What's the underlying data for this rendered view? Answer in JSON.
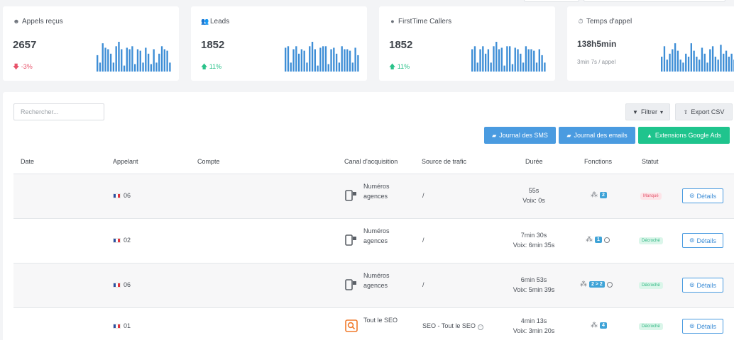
{
  "stats": [
    {
      "title": "Appels reçus",
      "icon": "headset-icon",
      "value": "2657",
      "trend": "-3%",
      "trend_dir": "down",
      "bars": [
        0.55,
        0.3,
        0.95,
        0.8,
        0.75,
        0.6,
        0.3,
        0.85,
        1.0,
        0.75,
        0.2,
        0.8,
        0.75,
        0.85,
        0.25,
        0.75,
        0.7,
        0.3,
        0.8,
        0.6,
        0.25,
        0.75,
        0.3,
        0.6,
        0.85,
        0.75,
        0.7,
        0.3
      ]
    },
    {
      "title": "Leads",
      "icon": "users-icon",
      "value": "1852",
      "trend": "11%",
      "trend_dir": "up",
      "bars": [
        0.8,
        0.85,
        0.3,
        0.75,
        0.85,
        0.6,
        0.75,
        0.7,
        0.3,
        0.85,
        1.0,
        0.75,
        0.2,
        0.8,
        0.85,
        0.85,
        0.25,
        0.75,
        0.8,
        0.6,
        0.3,
        0.85,
        0.75,
        0.75,
        0.7,
        0.3,
        0.8,
        0.55
      ]
    },
    {
      "title": "FirstTime Callers",
      "icon": "user-shield-icon",
      "value": "1852",
      "trend": "11%",
      "trend_dir": "up",
      "bars": [
        0.75,
        0.85,
        0.3,
        0.75,
        0.85,
        0.6,
        0.75,
        0.3,
        0.85,
        1.0,
        0.75,
        0.8,
        0.2,
        0.85,
        0.85,
        0.25,
        0.8,
        0.75,
        0.6,
        0.3,
        0.85,
        0.75,
        0.75,
        0.7,
        0.3,
        0.75,
        0.55,
        0.3
      ]
    },
    {
      "title": "Temps d'appel",
      "icon": "stopwatch-icon",
      "value": "138h5min",
      "sub": "3min 7s / appel",
      "bars": [
        0.5,
        0.85,
        0.4,
        0.6,
        0.75,
        0.95,
        0.7,
        0.4,
        0.3,
        0.6,
        0.5,
        0.95,
        0.7,
        0.5,
        0.4,
        0.8,
        0.6,
        0.3,
        0.75,
        0.85,
        0.5,
        0.4,
        0.9,
        0.6,
        0.7,
        0.5,
        0.6,
        0.4
      ]
    }
  ],
  "toolbar": {
    "search_placeholder": "Rechercher...",
    "filter_label": "Filtrer",
    "export_label": "Export CSV",
    "sms_label": "Journal des SMS",
    "emails_label": "Journal des emails",
    "ads_label": "Extensions Google Ads"
  },
  "table": {
    "headers": {
      "date": "Date",
      "caller": "Appelant",
      "account": "Compte",
      "channel": "Canal d'acquisition",
      "source": "Source de trafic",
      "duration": "Durée",
      "functions": "Fonctions",
      "status": "Statut"
    },
    "rows": [
      {
        "caller": "06",
        "channel_l1": "Numéros",
        "channel_l2": "agences",
        "channel_type": "phone",
        "source": "/",
        "dur1": "55s",
        "dur2": "Voix: 0s",
        "fn_count": "2",
        "fn_user": false,
        "status": "Manqué",
        "status_type": "miss",
        "details": "Détails"
      },
      {
        "caller": "02",
        "channel_l1": "Numéros",
        "channel_l2": "agences",
        "channel_type": "phone",
        "source": "/",
        "dur1": "7min 30s",
        "dur2": "Voix: 6min 35s",
        "fn_count": "1",
        "fn_user": true,
        "status": "Décroché",
        "status_type": "ok",
        "details": "Détails"
      },
      {
        "caller": "06",
        "channel_l1": "Numéros",
        "channel_l2": "agences",
        "channel_type": "phone",
        "source": "/",
        "dur1": "6min 53s",
        "dur2": "Voix: 5min 39s",
        "fn_count": "2 > 2",
        "fn_user": true,
        "status": "Décroché",
        "status_type": "ok",
        "details": "Détails"
      },
      {
        "caller": "01",
        "channel_l1": "Tout le SEO",
        "channel_l2": "",
        "channel_type": "seo",
        "source": "SEO - Tout le SEO",
        "dur1": "4min 13s",
        "dur2": "Voix: 3min 20s",
        "fn_count": "4",
        "fn_user": false,
        "status": "Décroché",
        "status_type": "ok",
        "details": "Détails"
      }
    ]
  },
  "colors": {
    "accent": "#4a9be0",
    "green": "#1fc48d",
    "spark": "#3e8ed6",
    "miss": "#e3546b"
  }
}
